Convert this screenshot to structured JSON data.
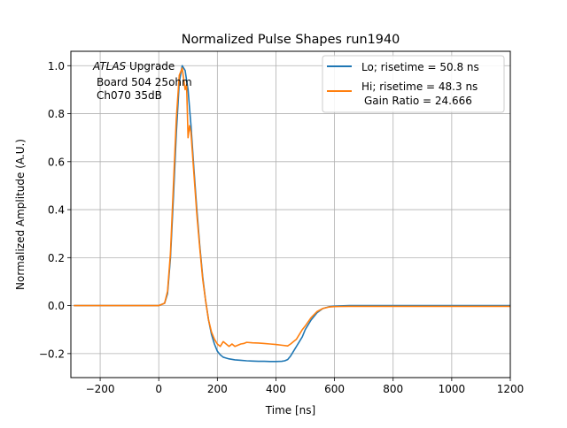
{
  "chart_data": {
    "type": "line",
    "title": "Normalized Pulse Shapes run1940",
    "xlabel": "Time [ns]",
    "ylabel": "Normalized Amplitude (A.U.)",
    "xlim": [
      -300,
      1200
    ],
    "ylim": [
      -0.3,
      1.06
    ],
    "xticks": [
      -200,
      0,
      200,
      400,
      600,
      800,
      1000,
      1200
    ],
    "xtick_labels": [
      "−200",
      "0",
      "200",
      "400",
      "600",
      "800",
      "1000",
      "1200"
    ],
    "yticks": [
      -0.2,
      0.0,
      0.2,
      0.4,
      0.6,
      0.8,
      1.0
    ],
    "ytick_labels": [
      "−0.2",
      "0.0",
      "0.2",
      "0.4",
      "0.6",
      "0.8",
      "1.0"
    ],
    "grid": true,
    "legend_position": "top-right",
    "annotation": {
      "italic": "ATLAS",
      "rest": " Upgrade",
      "line2": "Board 504 25ohm",
      "line3": "Ch070 35dB"
    },
    "series": [
      {
        "name": "Lo; risetime = 50.8 ns",
        "color": "#1f77b4",
        "x": [
          -290,
          -250,
          -200,
          -150,
          -100,
          -50,
          0,
          20,
          30,
          40,
          50,
          60,
          70,
          80,
          90,
          100,
          110,
          120,
          130,
          140,
          150,
          160,
          170,
          180,
          190,
          200,
          210,
          220,
          240,
          260,
          280,
          300,
          320,
          340,
          360,
          380,
          400,
          420,
          430,
          440,
          450,
          460,
          470,
          480,
          490,
          500,
          520,
          540,
          560,
          580,
          600,
          650,
          700,
          800,
          900,
          1000,
          1100,
          1200
        ],
        "y": [
          0.0,
          0.0,
          0.0,
          0.0,
          0.0,
          0.0,
          0.0,
          0.01,
          0.05,
          0.2,
          0.45,
          0.72,
          0.93,
          1.0,
          0.98,
          0.9,
          0.75,
          0.57,
          0.4,
          0.25,
          0.12,
          0.02,
          -0.06,
          -0.12,
          -0.16,
          -0.19,
          -0.205,
          -0.215,
          -0.222,
          -0.226,
          -0.228,
          -0.23,
          -0.231,
          -0.232,
          -0.232,
          -0.233,
          -0.233,
          -0.232,
          -0.23,
          -0.225,
          -0.21,
          -0.19,
          -0.17,
          -0.15,
          -0.13,
          -0.1,
          -0.06,
          -0.03,
          -0.012,
          -0.005,
          -0.002,
          0.0,
          0.0,
          0.0,
          0.0,
          0.0,
          0.0,
          0.0
        ]
      },
      {
        "name": "Hi; risetime = 48.3 ns",
        "name2": "Gain Ratio = 24.666",
        "color": "#ff7f0e",
        "x": [
          -290,
          -250,
          -200,
          -150,
          -100,
          -50,
          0,
          20,
          30,
          40,
          50,
          60,
          70,
          80,
          90,
          95,
          100,
          105,
          110,
          120,
          130,
          140,
          150,
          160,
          170,
          180,
          190,
          200,
          210,
          220,
          230,
          240,
          250,
          260,
          270,
          280,
          290,
          300,
          320,
          340,
          360,
          380,
          400,
          420,
          440,
          450,
          460,
          470,
          480,
          490,
          500,
          520,
          540,
          560,
          580,
          600,
          650,
          700,
          800,
          900,
          1000,
          1100,
          1200
        ],
        "y": [
          0.0,
          0.0,
          0.0,
          0.0,
          0.0,
          0.0,
          0.0,
          0.01,
          0.06,
          0.22,
          0.5,
          0.78,
          0.96,
          0.99,
          0.9,
          0.92,
          0.7,
          0.75,
          0.72,
          0.55,
          0.38,
          0.24,
          0.11,
          0.02,
          -0.06,
          -0.11,
          -0.14,
          -0.16,
          -0.17,
          -0.15,
          -0.16,
          -0.17,
          -0.16,
          -0.17,
          -0.165,
          -0.16,
          -0.158,
          -0.153,
          -0.155,
          -0.156,
          -0.158,
          -0.16,
          -0.162,
          -0.165,
          -0.168,
          -0.16,
          -0.15,
          -0.14,
          -0.12,
          -0.1,
          -0.085,
          -0.05,
          -0.025,
          -0.012,
          -0.006,
          -0.004,
          -0.003,
          -0.003,
          -0.003,
          -0.003,
          -0.003,
          -0.003,
          -0.003
        ]
      }
    ]
  }
}
